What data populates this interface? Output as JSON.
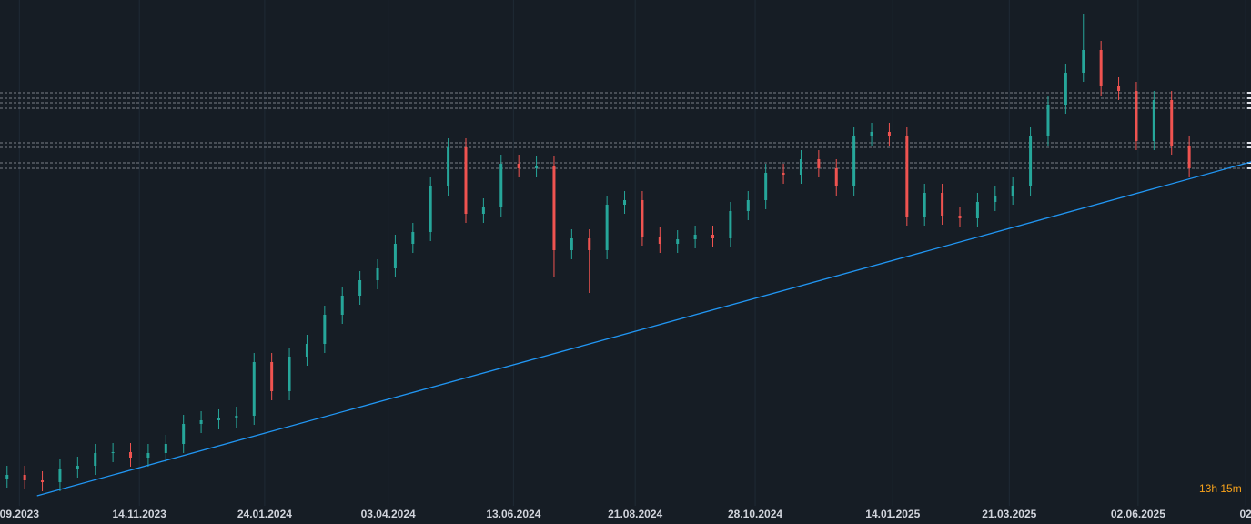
{
  "chart_data": {
    "type": "ohlc",
    "xlim": [
      -79,
      630
    ],
    "ylim": [
      0,
      556
    ],
    "xticks": [
      {
        "value": -68,
        "label": "09.2023"
      },
      {
        "value": 0,
        "label": "14.11.2023"
      },
      {
        "value": 71,
        "label": "24.01.2024"
      },
      {
        "value": 141,
        "label": "03.04.2024"
      },
      {
        "value": 212,
        "label": "13.06.2024"
      },
      {
        "value": 281,
        "label": "21.08.2024"
      },
      {
        "value": 349,
        "label": "28.10.2024"
      },
      {
        "value": 427,
        "label": "14.01.2025"
      },
      {
        "value": 493,
        "label": "21.03.2025"
      },
      {
        "value": 566,
        "label": "02.06.2025"
      },
      {
        "value": 627,
        "label": "02"
      }
    ],
    "grid": true,
    "up_color": "#26a69a",
    "down_color": "#ef5350",
    "x": [
      -75,
      -65,
      -55,
      -45,
      -35,
      -25,
      -15,
      -5,
      5,
      15,
      25,
      35,
      45,
      55,
      65,
      75,
      85,
      95,
      105,
      115,
      125,
      135,
      145,
      155,
      165,
      175,
      185,
      195,
      205,
      215,
      225,
      235,
      245,
      255,
      265,
      275,
      285,
      295,
      305,
      315,
      325,
      335,
      345,
      355,
      365,
      375,
      385,
      395,
      405,
      415,
      425,
      435,
      445,
      455,
      465,
      475,
      485,
      495,
      505,
      515,
      525,
      535,
      545,
      555,
      565,
      575,
      585,
      595
    ],
    "open": [
      30,
      34,
      28,
      26,
      41,
      44,
      58,
      59,
      53,
      58,
      68,
      90,
      94,
      96,
      99,
      158,
      126,
      164,
      178,
      210,
      231,
      248,
      261,
      288,
      301,
      351,
      394,
      321,
      328,
      376,
      371,
      374,
      281,
      294,
      281,
      331,
      336,
      296,
      288,
      293,
      298,
      294,
      324,
      336,
      366,
      364,
      381,
      371,
      351,
      406,
      411,
      406,
      318,
      344,
      319,
      316,
      334,
      341,
      351,
      406,
      441,
      476,
      501,
      461,
      456,
      401,
      446,
      396
    ],
    "high": [
      44,
      44,
      38,
      51,
      54,
      68,
      69,
      69,
      68,
      78,
      100,
      104,
      106,
      109,
      168,
      168,
      174,
      188,
      220,
      241,
      258,
      271,
      298,
      311,
      361,
      404,
      404,
      338,
      386,
      386,
      384,
      384,
      304,
      304,
      341,
      346,
      346,
      306,
      303,
      308,
      308,
      334,
      346,
      376,
      376,
      391,
      391,
      381,
      416,
      421,
      421,
      416,
      354,
      354,
      329,
      344,
      351,
      361,
      416,
      451,
      486,
      541,
      511,
      471,
      466,
      456,
      456,
      406
    ],
    "low": [
      20,
      18,
      16,
      16,
      31,
      34,
      48,
      43,
      43,
      48,
      58,
      80,
      84,
      86,
      89,
      116,
      116,
      154,
      168,
      200,
      221,
      238,
      251,
      278,
      291,
      341,
      311,
      311,
      318,
      361,
      361,
      251,
      271,
      234,
      271,
      321,
      286,
      278,
      278,
      283,
      284,
      284,
      314,
      326,
      354,
      354,
      361,
      341,
      341,
      396,
      396,
      308,
      308,
      309,
      306,
      306,
      324,
      331,
      341,
      396,
      431,
      466,
      451,
      446,
      391,
      391,
      386,
      361
    ],
    "close": [
      34,
      28,
      26,
      41,
      44,
      58,
      59,
      53,
      58,
      68,
      90,
      94,
      96,
      99,
      158,
      126,
      164,
      178,
      210,
      231,
      248,
      261,
      288,
      301,
      351,
      394,
      321,
      328,
      376,
      371,
      374,
      281,
      294,
      281,
      331,
      336,
      296,
      288,
      293,
      298,
      294,
      324,
      336,
      366,
      364,
      381,
      371,
      351,
      406,
      411,
      406,
      318,
      344,
      319,
      316,
      334,
      341,
      351,
      406,
      441,
      476,
      501,
      461,
      456,
      401,
      446,
      396,
      371
    ],
    "levels": {
      "values": [
        454,
        448,
        443,
        437,
        399,
        394,
        377,
        371
      ],
      "color": "#9598a1"
    },
    "trendline": {
      "x": [
        -58,
        630
      ],
      "y": [
        11,
        378
      ],
      "color": "#2196f3"
    },
    "countdown": "13h 15m"
  }
}
